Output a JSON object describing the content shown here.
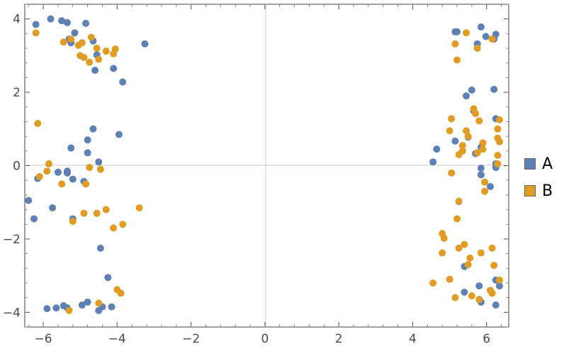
{
  "chart_data": {
    "type": "scatter",
    "title": "",
    "xlabel": "",
    "ylabel": "",
    "xlim": [
      -6.5,
      6.6
    ],
    "ylim": [
      -4.4,
      4.4
    ],
    "x_ticks": [
      -6,
      -4,
      -2,
      0,
      2,
      4,
      6
    ],
    "x_tick_labels": [
      "−6",
      "−4",
      "−2",
      "0",
      "2",
      "4",
      "6"
    ],
    "y_ticks": [
      -4,
      -2,
      0,
      2,
      4
    ],
    "y_tick_labels": [
      "−4",
      "−2",
      "0",
      "2",
      "4"
    ],
    "grid": "axes-lines-only",
    "legend_position": "right",
    "series": [
      {
        "name": "A",
        "color": "#5e81b5",
        "points": [
          [
            -6.2,
            3.85
          ],
          [
            -5.8,
            4.0
          ],
          [
            -5.5,
            3.95
          ],
          [
            -5.35,
            3.9
          ],
          [
            -5.3,
            3.45
          ],
          [
            -5.15,
            3.62
          ],
          [
            -4.85,
            3.88
          ],
          [
            -5.25,
            3.35
          ],
          [
            -4.65,
            3.4
          ],
          [
            -4.55,
            3.02
          ],
          [
            -4.6,
            2.6
          ],
          [
            -4.1,
            2.65
          ],
          [
            -3.85,
            2.28
          ],
          [
            -3.25,
            3.32
          ],
          [
            -6.4,
            -0.95
          ],
          [
            -6.25,
            -1.45
          ],
          [
            -6.15,
            -0.35
          ],
          [
            -5.75,
            -1.15
          ],
          [
            -5.6,
            -0.18
          ],
          [
            -5.35,
            -0.2
          ],
          [
            -5.35,
            -0.15
          ],
          [
            -5.2,
            -1.45
          ],
          [
            -5.2,
            -0.37
          ],
          [
            -5.25,
            0.48
          ],
          [
            -4.9,
            -0.43
          ],
          [
            -4.8,
            0.7
          ],
          [
            -4.8,
            0.35
          ],
          [
            -4.65,
            1.0
          ],
          [
            -4.5,
            0.1
          ],
          [
            -3.95,
            0.85
          ],
          [
            -4.45,
            -2.25
          ],
          [
            -4.25,
            -3.05
          ],
          [
            -5.9,
            -3.9
          ],
          [
            -5.65,
            -3.88
          ],
          [
            -5.45,
            -3.82
          ],
          [
            -5.35,
            -3.88
          ],
          [
            -4.95,
            -3.8
          ],
          [
            -4.8,
            -3.72
          ],
          [
            -4.5,
            -3.95
          ],
          [
            -4.4,
            -3.85
          ],
          [
            -4.15,
            -3.85
          ],
          [
            5.15,
            3.65
          ],
          [
            5.2,
            3.65
          ],
          [
            5.75,
            3.32
          ],
          [
            5.85,
            3.78
          ],
          [
            5.98,
            3.52
          ],
          [
            6.2,
            3.45
          ],
          [
            6.25,
            3.58
          ],
          [
            6.2,
            2.08
          ],
          [
            5.6,
            2.06
          ],
          [
            5.45,
            1.9
          ],
          [
            5.65,
            1.5
          ],
          [
            6.25,
            1.28
          ],
          [
            5.5,
            0.78
          ],
          [
            5.15,
            0.67
          ],
          [
            5.7,
            0.33
          ],
          [
            5.85,
            0.5
          ],
          [
            6.25,
            0.05
          ],
          [
            6.25,
            -0.05
          ],
          [
            5.85,
            -0.07
          ],
          [
            5.85,
            -0.25
          ],
          [
            6.1,
            -0.57
          ],
          [
            4.65,
            0.45
          ],
          [
            4.55,
            0.1
          ],
          [
            5.25,
            -0.98
          ],
          [
            5.4,
            -2.75
          ],
          [
            5.8,
            -3.28
          ],
          [
            5.4,
            -3.45
          ],
          [
            5.8,
            -3.65
          ],
          [
            5.85,
            -3.72
          ],
          [
            6.25,
            -3.12
          ],
          [
            6.35,
            -3.28
          ],
          [
            6.25,
            -3.8
          ]
        ]
      },
      {
        "name": "B",
        "color": "#e19c24",
        "points": [
          [
            -6.2,
            3.62
          ],
          [
            -5.45,
            3.37
          ],
          [
            -5.25,
            3.45
          ],
          [
            -5.05,
            3.28
          ],
          [
            -4.95,
            3.35
          ],
          [
            -4.9,
            2.95
          ],
          [
            -5.0,
            3.0
          ],
          [
            -4.7,
            3.5
          ],
          [
            -4.55,
            3.2
          ],
          [
            -4.5,
            2.9
          ],
          [
            -4.75,
            2.82
          ],
          [
            -4.3,
            3.12
          ],
          [
            -4.05,
            3.18
          ],
          [
            -4.1,
            3.05
          ],
          [
            -6.15,
            1.15
          ],
          [
            -6.1,
            -0.3
          ],
          [
            -5.9,
            -0.15
          ],
          [
            -5.85,
            0.05
          ],
          [
            -5.5,
            -0.5
          ],
          [
            -4.85,
            -0.5
          ],
          [
            -4.75,
            -0.05
          ],
          [
            -4.45,
            -0.1
          ],
          [
            -4.9,
            -1.3
          ],
          [
            -4.55,
            -1.3
          ],
          [
            -4.3,
            -1.2
          ],
          [
            -3.85,
            -1.6
          ],
          [
            -4.1,
            -1.7
          ],
          [
            -3.4,
            -1.15
          ],
          [
            -5.2,
            -1.52
          ],
          [
            -4.0,
            -3.38
          ],
          [
            -3.9,
            -3.48
          ],
          [
            -4.5,
            -3.75
          ],
          [
            -5.3,
            -3.95
          ],
          [
            5.15,
            3.32
          ],
          [
            5.45,
            3.62
          ],
          [
            6.15,
            3.45
          ],
          [
            5.75,
            3.2
          ],
          [
            5.2,
            2.88
          ],
          [
            5.05,
            1.28
          ],
          [
            5.65,
            1.55
          ],
          [
            5.7,
            1.42
          ],
          [
            5.8,
            1.22
          ],
          [
            5.45,
            0.95
          ],
          [
            5.5,
            0.8
          ],
          [
            5.35,
            0.55
          ],
          [
            5.35,
            0.4
          ],
          [
            5.25,
            0.3
          ],
          [
            5.0,
            0.95
          ],
          [
            5.75,
            0.35
          ],
          [
            5.9,
            0.45
          ],
          [
            5.9,
            0.62
          ],
          [
            6.3,
            1.0
          ],
          [
            6.35,
            1.25
          ],
          [
            6.3,
            0.75
          ],
          [
            6.35,
            0.65
          ],
          [
            6.3,
            0.28
          ],
          [
            6.3,
            0.05
          ],
          [
            5.95,
            -0.45
          ],
          [
            5.95,
            -0.7
          ],
          [
            5.05,
            -0.2
          ],
          [
            5.25,
            -0.97
          ],
          [
            5.2,
            -1.45
          ],
          [
            4.8,
            -1.85
          ],
          [
            4.85,
            -1.98
          ],
          [
            4.8,
            -2.38
          ],
          [
            5.25,
            -2.25
          ],
          [
            5.4,
            -2.15
          ],
          [
            5.55,
            -2.52
          ],
          [
            5.5,
            -2.7
          ],
          [
            5.85,
            -2.38
          ],
          [
            6.15,
            -2.25
          ],
          [
            6.2,
            -2.72
          ],
          [
            4.55,
            -3.2
          ],
          [
            5.0,
            -3.1
          ],
          [
            5.15,
            -3.6
          ],
          [
            5.6,
            -3.55
          ],
          [
            5.8,
            -3.65
          ],
          [
            6.1,
            -3.4
          ],
          [
            6.15,
            -3.48
          ],
          [
            6.35,
            -3.12
          ]
        ]
      }
    ]
  }
}
